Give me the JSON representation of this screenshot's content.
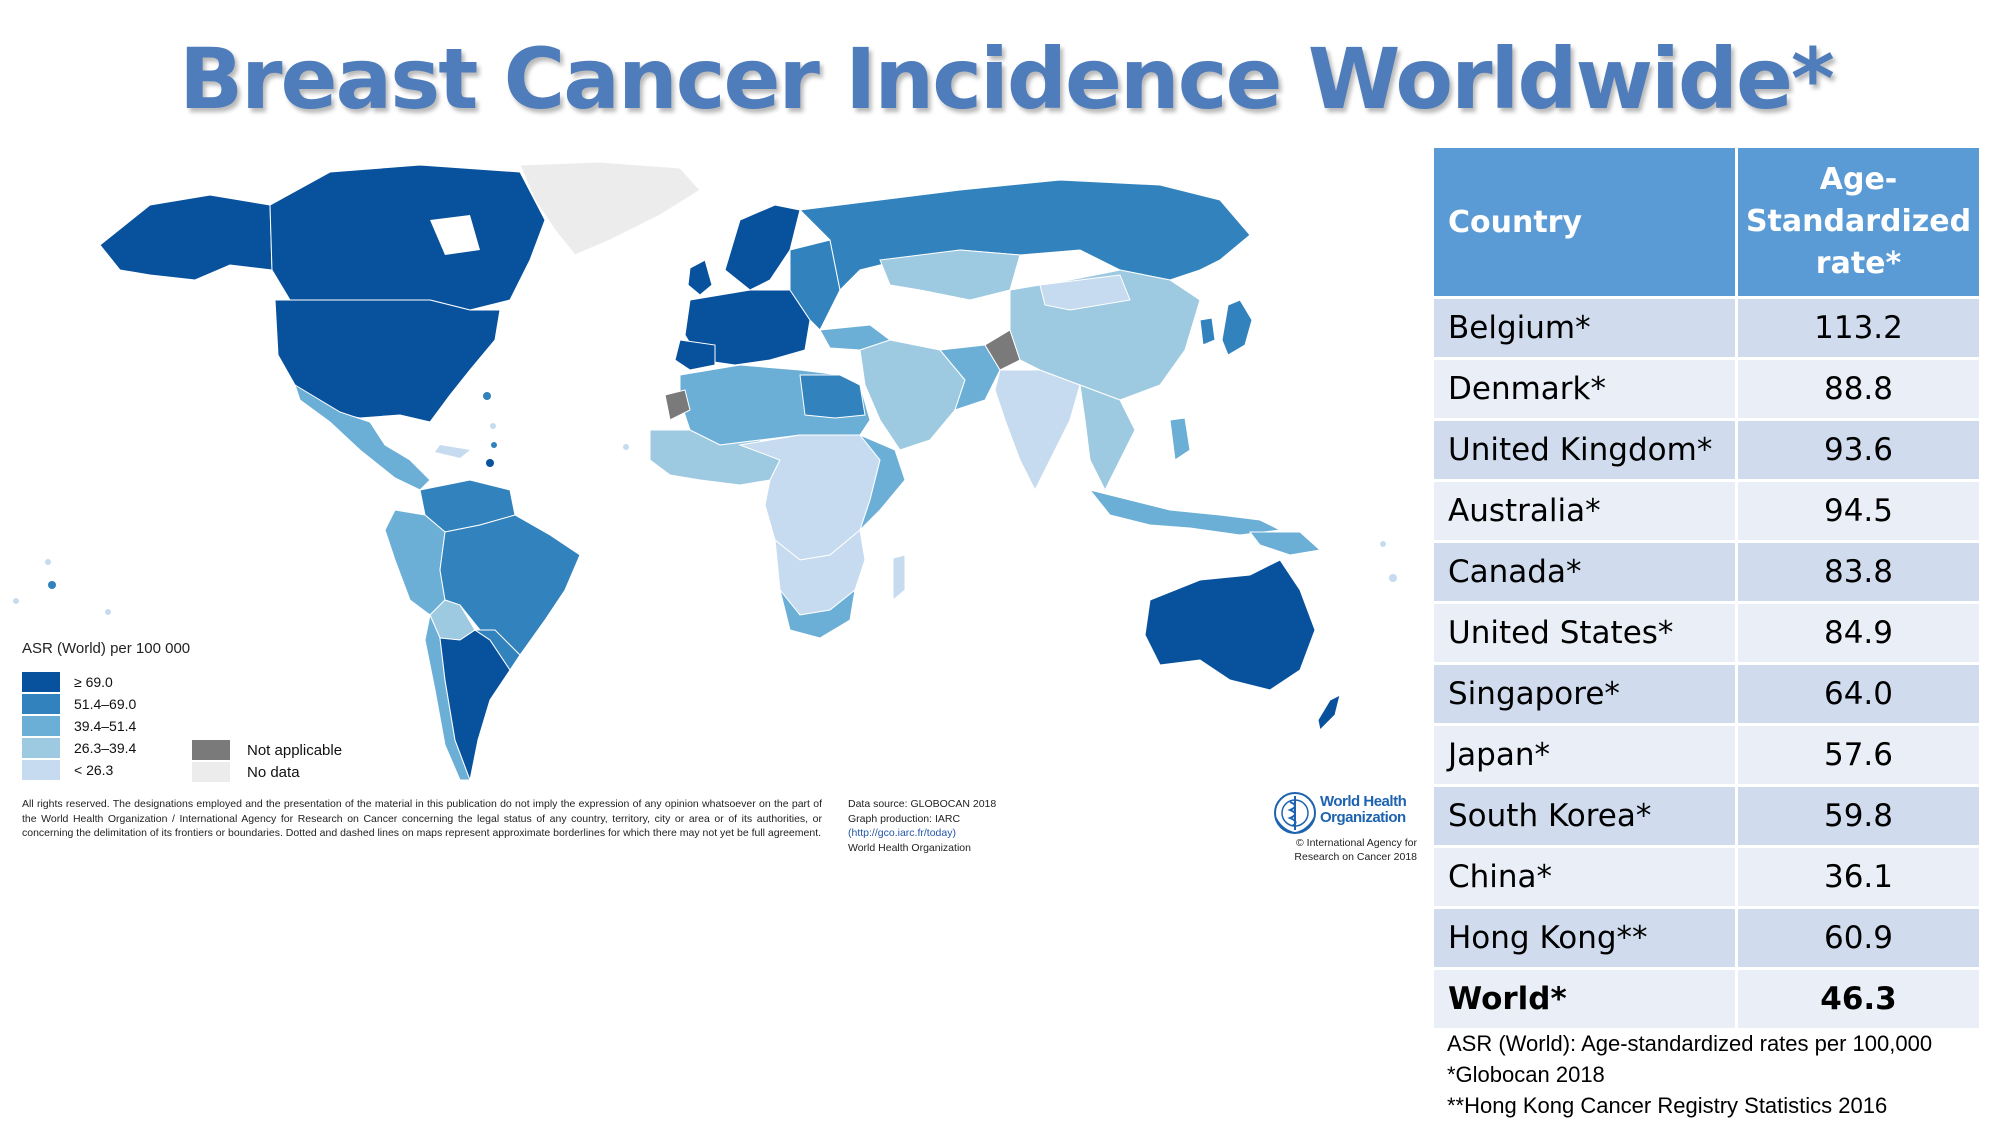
{
  "title": "Breast Cancer Incidence Worldwide*",
  "legend": {
    "title": "ASR (World) per 100 000",
    "classes": [
      {
        "label": "≥ 69.0",
        "color": "#08519c"
      },
      {
        "label": "51.4–69.0",
        "color": "#3182bd"
      },
      {
        "label": "39.4–51.4",
        "color": "#6baed6"
      },
      {
        "label": "26.3–39.4",
        "color": "#9ecae1"
      },
      {
        "label": "< 26.3",
        "color": "#c6dbef"
      }
    ],
    "not_applicable": {
      "label": "Not applicable",
      "color": "#7a7a7a"
    },
    "no_data": {
      "label": "No data",
      "color": "#ececec"
    }
  },
  "disclaimer": "All rights reserved. The designations employed and the presentation of the material in this publication do not imply the expression of any opinion whatsoever on the part of the World Health Organization / International Agency for Research on Cancer concerning the legal status of any country, territory, city or area or of its authorities, or concerning the delimitation of its frontiers or boundaries. Dotted and dashed lines on maps represent approximate borderlines for which there may not yet be full agreement.",
  "source": {
    "line1": "Data source: GLOBOCAN 2018",
    "line2": "Graph production: IARC",
    "link": "(http://gco.iarc.fr/today)",
    "line4": "World Health Organization"
  },
  "who": {
    "name_line1": "World Health",
    "name_line2": "Organization",
    "copy_line1": "© International Agency for",
    "copy_line2": "Research on Cancer 2018"
  },
  "table": {
    "header_country": "Country",
    "header_rate_line1": "Age-",
    "header_rate_line2": "Standardized",
    "header_rate_line3": "rate*",
    "rows": [
      {
        "country": "Belgium*",
        "rate": "113.2"
      },
      {
        "country": "Denmark*",
        "rate": "88.8"
      },
      {
        "country": "United Kingdom*",
        "rate": "93.6"
      },
      {
        "country": "Australia*",
        "rate": "94.5"
      },
      {
        "country": "Canada*",
        "rate": "83.8"
      },
      {
        "country": "United States*",
        "rate": "84.9"
      },
      {
        "country": "Singapore*",
        "rate": "64.0"
      },
      {
        "country": "Japan*",
        "rate": "57.6"
      },
      {
        "country": "South Korea*",
        "rate": "59.8"
      },
      {
        "country": "China*",
        "rate": "36.1"
      },
      {
        "country": "Hong Kong**",
        "rate": "60.9"
      },
      {
        "country": "World*",
        "rate": "46.3"
      }
    ]
  },
  "notes": [
    "ASR (World): Age-standardized rates per 100,000",
    "*Globocan 2018",
    "**Hong Kong Cancer Registry Statistics 2016"
  ]
}
